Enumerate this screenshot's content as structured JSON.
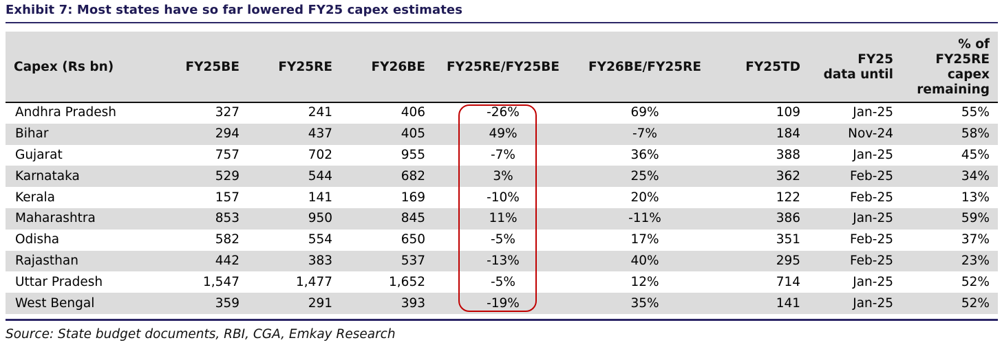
{
  "title": "Exhibit 7: Most states have so far lowered FY25 capex estimates",
  "columns": [
    {
      "key": "state",
      "label": "Capex (Rs bn)"
    },
    {
      "key": "fy25be",
      "label": "FY25BE"
    },
    {
      "key": "fy25re",
      "label": "FY25RE"
    },
    {
      "key": "fy26be",
      "label": "FY26BE"
    },
    {
      "key": "re_be",
      "label": "FY25RE/FY25BE"
    },
    {
      "key": "be26_re25",
      "label": "FY26BE/FY25RE"
    },
    {
      "key": "fy25td",
      "label": "FY25TD"
    },
    {
      "key": "until",
      "label_lines": [
        "FY25",
        "data until"
      ]
    },
    {
      "key": "remaining",
      "label_lines": [
        "% of",
        "FY25RE",
        "capex",
        "remaining"
      ]
    }
  ],
  "rows": [
    {
      "state": "Andhra Pradesh",
      "fy25be": "327",
      "fy25re": "241",
      "fy26be": "406",
      "re_be": "-26%",
      "be26_re25": "69%",
      "fy25td": "109",
      "until": "Jan-25",
      "remaining": "55%"
    },
    {
      "state": "Bihar",
      "fy25be": "294",
      "fy25re": "437",
      "fy26be": "405",
      "re_be": "49%",
      "be26_re25": "-7%",
      "fy25td": "184",
      "until": "Nov-24",
      "remaining": "58%"
    },
    {
      "state": "Gujarat",
      "fy25be": "757",
      "fy25re": "702",
      "fy26be": "955",
      "re_be": "-7%",
      "be26_re25": "36%",
      "fy25td": "388",
      "until": "Jan-25",
      "remaining": "45%"
    },
    {
      "state": "Karnataka",
      "fy25be": "529",
      "fy25re": "544",
      "fy26be": "682",
      "re_be": "3%",
      "be26_re25": "25%",
      "fy25td": "362",
      "until": "Feb-25",
      "remaining": "34%"
    },
    {
      "state": "Kerala",
      "fy25be": "157",
      "fy25re": "141",
      "fy26be": "169",
      "re_be": "-10%",
      "be26_re25": "20%",
      "fy25td": "122",
      "until": "Feb-25",
      "remaining": "13%"
    },
    {
      "state": "Maharashtra",
      "fy25be": "853",
      "fy25re": "950",
      "fy26be": "845",
      "re_be": "11%",
      "be26_re25": "-11%",
      "fy25td": "386",
      "until": "Jan-25",
      "remaining": "59%"
    },
    {
      "state": "Odisha",
      "fy25be": "582",
      "fy25re": "554",
      "fy26be": "650",
      "re_be": "-5%",
      "be26_re25": "17%",
      "fy25td": "351",
      "until": "Feb-25",
      "remaining": "37%"
    },
    {
      "state": "Rajasthan",
      "fy25be": "442",
      "fy25re": "383",
      "fy26be": "537",
      "re_be": "-13%",
      "be26_re25": "40%",
      "fy25td": "295",
      "until": "Feb-25",
      "remaining": "23%"
    },
    {
      "state": "Uttar Pradesh",
      "fy25be": "1,547",
      "fy25re": "1,477",
      "fy26be": "1,652",
      "re_be": "-5%",
      "be26_re25": "12%",
      "fy25td": "714",
      "until": "Jan-25",
      "remaining": "52%"
    },
    {
      "state": "West Bengal",
      "fy25be": "359",
      "fy25re": "291",
      "fy26be": "393",
      "re_be": "-19%",
      "be26_re25": "35%",
      "fy25td": "141",
      "until": "Jan-25",
      "remaining": "52%"
    }
  ],
  "highlight_color": "#c00000",
  "accent_color": "#2b2666",
  "source": "Source: State budget documents, RBI, CGA, Emkay Research"
}
